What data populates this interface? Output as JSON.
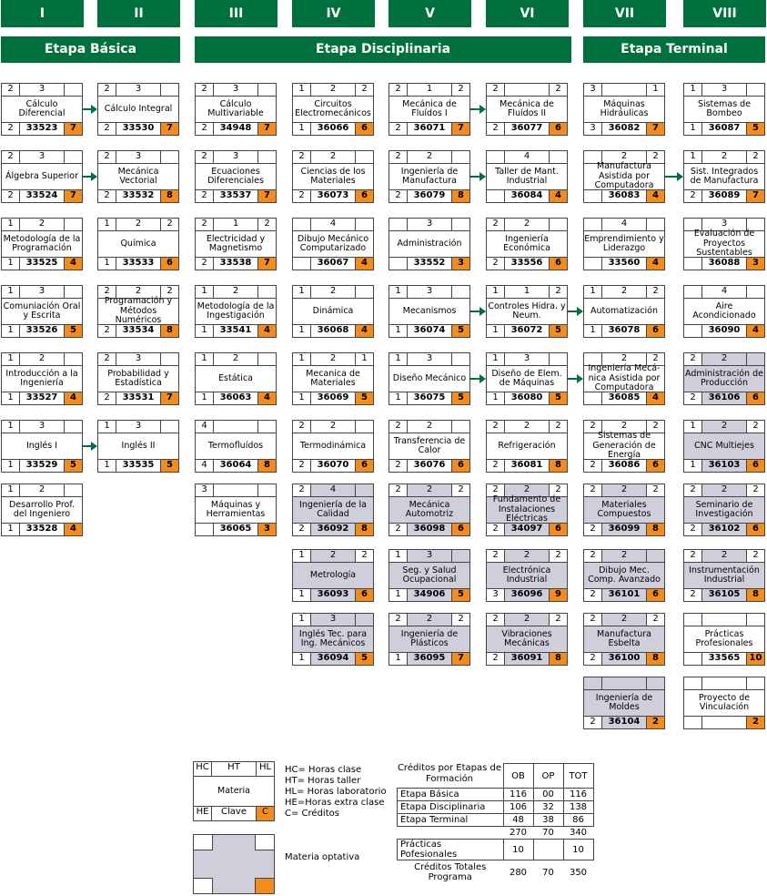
{
  "semesters": [
    "I",
    "II",
    "III",
    "IV",
    "V",
    "VI",
    "VII",
    "VIII"
  ],
  "stages": [
    "Etapa Básica",
    "Etapa Disciplinaria",
    "Etapa Terminal"
  ],
  "subjects": [
    {
      "hc": "2",
      "ht": "3",
      "hl": "",
      "name": "Cálculo Diferencial",
      "he": "2",
      "code": "33523",
      "cr": "7",
      "opt": false
    },
    {
      "hc": "2",
      "ht": "3",
      "hl": "",
      "name": "Álgebra Superior",
      "he": "2",
      "code": "33524",
      "cr": "7",
      "opt": false
    },
    {
      "hc": "1",
      "ht": "2",
      "hl": "",
      "name": "Metodología de la Programación",
      "he": "1",
      "code": "33525",
      "cr": "4",
      "opt": false
    },
    {
      "hc": "1",
      "ht": "3",
      "hl": "",
      "name": "Comuniación Oral y Escrita",
      "he": "1",
      "code": "33526",
      "cr": "5",
      "opt": false
    },
    {
      "hc": "1",
      "ht": "2",
      "hl": "",
      "name": "Introducción a la Ingeniería",
      "he": "1",
      "code": "33527",
      "cr": "4",
      "opt": false
    },
    {
      "hc": "1",
      "ht": "3",
      "hl": "",
      "name": "Inglés I",
      "he": "1",
      "code": "33529",
      "cr": "5",
      "opt": false
    },
    {
      "hc": "1",
      "ht": "2",
      "hl": "",
      "name": "Desarrollo Prof. del Ingeniero",
      "he": "1",
      "code": "33528",
      "cr": "4",
      "opt": false
    },
    {
      "hc": "2",
      "ht": "3",
      "hl": "",
      "name": "Cálculo Integral",
      "he": "2",
      "code": "33530",
      "cr": "7",
      "opt": false
    },
    {
      "hc": "2",
      "ht": "3",
      "hl": "",
      "name": "Mecánica Vectorial",
      "he": "2",
      "code": "33532",
      "cr": "8",
      "opt": false
    },
    {
      "hc": "1",
      "ht": "2",
      "hl": "2",
      "name": "Química",
      "he": "1",
      "code": "33533",
      "cr": "6",
      "opt": false
    },
    {
      "hc": "2",
      "ht": "2",
      "hl": "2",
      "name": "Programación y Métodos Numéricos",
      "he": "2",
      "code": "33534",
      "cr": "8",
      "opt": false
    },
    {
      "hc": "2",
      "ht": "3",
      "hl": "",
      "name": "Probabilidad y Estadística",
      "he": "2",
      "code": "33531",
      "cr": "7",
      "opt": false
    },
    {
      "hc": "1",
      "ht": "3",
      "hl": "",
      "name": "Inglés II",
      "he": "1",
      "code": "33535",
      "cr": "5",
      "opt": false
    },
    {
      "hc": "2",
      "ht": "3",
      "hl": "",
      "name": "Cálculo Multivariable",
      "he": "2",
      "code": "34948",
      "cr": "7",
      "opt": false
    },
    {
      "hc": "2",
      "ht": "3",
      "hl": "",
      "name": "Ecuaciones Diferenciales",
      "he": "2",
      "code": "33537",
      "cr": "7",
      "opt": false
    },
    {
      "hc": "2",
      "ht": "1",
      "hl": "2",
      "name": "Electricidad y Magnetismo",
      "he": "2",
      "code": "33538",
      "cr": "7",
      "opt": false
    },
    {
      "hc": "1",
      "ht": "2",
      "hl": "",
      "name": "Metodología de la Ingestigación",
      "he": "1",
      "code": "33541",
      "cr": "4",
      "opt": false
    },
    {
      "hc": "1",
      "ht": "2",
      "hl": "",
      "name": "Estática",
      "he": "1",
      "code": "36063",
      "cr": "4",
      "opt": false
    },
    {
      "hc": "4",
      "ht": "",
      "hl": "",
      "name": "Termofluídos",
      "he": "4",
      "code": "36064",
      "cr": "8",
      "opt": false
    },
    {
      "hc": "3",
      "ht": "",
      "hl": "",
      "name": "Máquinas y Herramientas",
      "he": "",
      "code": "36065",
      "cr": "3",
      "opt": false
    },
    {
      "hc": "1",
      "ht": "2",
      "hl": "2",
      "name": "Circuitos Electromecánicos",
      "he": "1",
      "code": "36066",
      "cr": "6",
      "opt": false
    },
    {
      "hc": "2",
      "ht": "2",
      "hl": "",
      "name": "Ciencias de los Materiales",
      "he": "2",
      "code": "36073",
      "cr": "6",
      "opt": false
    },
    {
      "hc": "",
      "ht": "4",
      "hl": "",
      "name": "Dibujo Mecánico Computarizado",
      "he": "",
      "code": "36067",
      "cr": "4",
      "opt": false
    },
    {
      "hc": "1",
      "ht": "2",
      "hl": "",
      "name": "Dinámica",
      "he": "1",
      "code": "36068",
      "cr": "4",
      "opt": false
    },
    {
      "hc": "1",
      "ht": "2",
      "hl": "1",
      "name": "Mecanica de Materiales",
      "he": "1",
      "code": "36069",
      "cr": "5",
      "opt": false
    },
    {
      "hc": "2",
      "ht": "2",
      "hl": "",
      "name": "Termodinámica",
      "he": "2",
      "code": "36070",
      "cr": "6",
      "opt": false
    },
    {
      "hc": "2",
      "ht": "4",
      "hl": "",
      "name": "Ingeniería de la Calidad",
      "he": "2",
      "code": "36092",
      "cr": "8",
      "opt": true
    },
    {
      "hc": "1",
      "ht": "2",
      "hl": "2",
      "name": "Metrología",
      "he": "1",
      "code": "36093",
      "cr": "6",
      "opt": true
    },
    {
      "hc": "1",
      "ht": "3",
      "hl": "",
      "name": "Inglés Tec. para Ing. Mecánicos",
      "he": "1",
      "code": "36094",
      "cr": "5",
      "opt": true
    },
    {
      "hc": "2",
      "ht": "1",
      "hl": "2",
      "name": "Mecánica de Fluídos I",
      "he": "2",
      "code": "36071",
      "cr": "7",
      "opt": false
    },
    {
      "hc": "2",
      "ht": "2",
      "hl": "",
      "name": "Ingeniería de Manufactura",
      "he": "2",
      "code": "36079",
      "cr": "8",
      "opt": false
    },
    {
      "hc": "",
      "ht": "3",
      "hl": "",
      "name": "Administración",
      "he": "",
      "code": "33552",
      "cr": "3",
      "opt": false
    },
    {
      "hc": "1",
      "ht": "3",
      "hl": "",
      "name": "Mecanismos",
      "he": "1",
      "code": "36074",
      "cr": "5",
      "opt": false
    },
    {
      "hc": "1",
      "ht": "3",
      "hl": "",
      "name": "Diseño Mecánico",
      "he": "1",
      "code": "36075",
      "cr": "5",
      "opt": false
    },
    {
      "hc": "2",
      "ht": "2",
      "hl": "",
      "name": "Transferencia de Calor",
      "he": "2",
      "code": "36076",
      "cr": "6",
      "opt": false
    },
    {
      "hc": "2",
      "ht": "2",
      "hl": "2",
      "name": "Mecánica Automotriz",
      "he": "2",
      "code": "36098",
      "cr": "6",
      "opt": true
    },
    {
      "hc": "1",
      "ht": "3",
      "hl": "",
      "name": "Seg. y Salud Ocupacional",
      "he": "1",
      "code": "34906",
      "cr": "5",
      "opt": true
    },
    {
      "hc": "2",
      "ht": "2",
      "hl": "2",
      "name": "Ingeniería de Plásticos",
      "he": "1",
      "code": "36095",
      "cr": "7",
      "opt": true
    },
    {
      "hc": "2",
      "ht": "",
      "hl": "2",
      "name": "Mecánica de Fluídos II",
      "he": "2",
      "code": "36077",
      "cr": "6",
      "opt": false
    },
    {
      "hc": "",
      "ht": "4",
      "hl": "",
      "name": "Taller de Mant. Industrial",
      "he": "",
      "code": "36084",
      "cr": "4",
      "opt": false
    },
    {
      "hc": "2",
      "ht": "2",
      "hl": "",
      "name": "Ingeniería Económica",
      "he": "2",
      "code": "33556",
      "cr": "6",
      "opt": false
    },
    {
      "hc": "1",
      "ht": "1",
      "hl": "2",
      "name": "Controles Hidra. y Neum.",
      "he": "1",
      "code": "36072",
      "cr": "5",
      "opt": false
    },
    {
      "hc": "1",
      "ht": "3",
      "hl": "",
      "name": "Diseño de Elem. de Máquinas",
      "he": "1",
      "code": "36080",
      "cr": "5",
      "opt": false
    },
    {
      "hc": "2",
      "ht": "2",
      "hl": "2",
      "name": "Refrigeración",
      "he": "2",
      "code": "36081",
      "cr": "8",
      "opt": false
    },
    {
      "hc": "2",
      "ht": "2",
      "hl": "2",
      "name": "Fundamento de Instalaciones Eléctricas",
      "he": "2",
      "code": "34097",
      "cr": "6",
      "opt": true
    },
    {
      "hc": "2",
      "ht": "2",
      "hl": "2",
      "name": "Electrónica Industrial",
      "he": "3",
      "code": "36096",
      "cr": "9",
      "opt": true
    },
    {
      "hc": "2",
      "ht": "2",
      "hl": "2",
      "name": "Vibraciones Mecánicas",
      "he": "2",
      "code": "36091",
      "cr": "8",
      "opt": true
    },
    {
      "hc": "3",
      "ht": "",
      "hl": "1",
      "name": "Máquinas Hidráulicas",
      "he": "3",
      "code": "36082",
      "cr": "7",
      "opt": false
    },
    {
      "hc": "",
      "ht": "2",
      "hl": "2",
      "name": "Manufactura Asistida por Computadora",
      "he": "",
      "code": "36083",
      "cr": "4",
      "opt": false
    },
    {
      "hc": "",
      "ht": "4",
      "hl": "",
      "name": "Emprendimiento y Liderazgo",
      "he": "",
      "code": "33560",
      "cr": "4",
      "opt": false
    },
    {
      "hc": "1",
      "ht": "2",
      "hl": "2",
      "name": "Automatización",
      "he": "1",
      "code": "36078",
      "cr": "6",
      "opt": false
    },
    {
      "hc": "",
      "ht": "2",
      "hl": "2",
      "name": "Ingeniería Mecá-nica Asistida por Computadora",
      "he": "",
      "code": "36085",
      "cr": "4",
      "opt": false
    },
    {
      "hc": "2",
      "ht": "2",
      "hl": "2",
      "name": "Sistemas de Generación de Energía",
      "he": "2",
      "code": "36086",
      "cr": "6",
      "opt": false
    },
    {
      "hc": "2",
      "ht": "2",
      "hl": "2",
      "name": "Materiales Compuestos",
      "he": "2",
      "code": "36099",
      "cr": "8",
      "opt": true
    },
    {
      "hc": "2",
      "ht": "2",
      "hl": "",
      "name": "Dibujo Mec. Comp. Avanzado",
      "he": "2",
      "code": "36101",
      "cr": "6",
      "opt": true
    },
    {
      "hc": "2",
      "ht": "2",
      "hl": "2",
      "name": "Manufactura Esbelta",
      "he": "2",
      "code": "36100",
      "cr": "8",
      "opt": true
    },
    {
      "hc": "",
      "ht": "",
      "hl": "",
      "name": "Ingeniería de Moldes",
      "he": "2",
      "code": "36104",
      "cr": "2",
      "opt": true
    },
    {
      "hc": "1",
      "ht": "3",
      "hl": "",
      "name": "Sistemas de Bombeo",
      "he": "1",
      "code": "36087",
      "cr": "5",
      "opt": false
    },
    {
      "hc": "1",
      "ht": "2",
      "hl": "2",
      "name": "Sist. Integrados de Manufactura",
      "he": "2",
      "code": "36089",
      "cr": "7",
      "opt": false
    },
    {
      "hc": "",
      "ht": "3",
      "hl": "",
      "name": "Evaluación de Proyectos Sustentables",
      "he": "",
      "code": "36088",
      "cr": "3",
      "opt": false
    },
    {
      "hc": "",
      "ht": "4",
      "hl": "",
      "name": "Aire Acondicionado",
      "he": "",
      "code": "36090",
      "cr": "4",
      "opt": false
    },
    {
      "hc": "2",
      "ht": "2",
      "hl": "",
      "name": "Administración de Producción",
      "he": "2",
      "code": "36106",
      "cr": "6",
      "opt": true
    },
    {
      "hc": "1",
      "ht": "2",
      "hl": "2",
      "name": "CNC Multiejes",
      "he": "1",
      "code": "36103",
      "cr": "6",
      "opt": true
    },
    {
      "hc": "2",
      "ht": "2",
      "hl": "2",
      "name": "Seminario de Investigación",
      "he": "2",
      "code": "36102",
      "cr": "6",
      "opt": true
    },
    {
      "hc": "2",
      "ht": "2",
      "hl": "2",
      "name": "Instrumentación Industrial",
      "he": "2",
      "code": "36105",
      "cr": "8",
      "opt": true
    },
    {
      "hc": "",
      "ht": "",
      "hl": "",
      "name": "Prácticas Profesionales",
      "he": "",
      "code": "33565",
      "cr": "10",
      "opt": false
    },
    {
      "hc": "",
      "ht": "",
      "hl": "",
      "name": "Proyecto de Vinculación",
      "he": "",
      "code": "",
      "cr": "2",
      "opt": false
    }
  ],
  "legend": {
    "hc": "HC",
    "ht": "HT",
    "hl": "HL",
    "materia": "Materia",
    "he": "HE",
    "clave": "Clave",
    "c": "C",
    "lines": [
      "HC= Horas clase",
      "HT= Horas taller",
      "HL= Horas laboratorio",
      "HE=Horas extra clase",
      "C= Créditos"
    ],
    "optional": "Materia optativa"
  },
  "credits": {
    "title": "Créditos por Etapas de Formación",
    "cols": [
      "OB",
      "OP",
      "TOT"
    ],
    "rows": [
      {
        "label": "Etapa Básica",
        "ob": "116",
        "op": "00",
        "tot": "116"
      },
      {
        "label": "Etapa Disciplinaria",
        "ob": "106",
        "op": "32",
        "tot": "138"
      },
      {
        "label": "Etapa Terminal",
        "ob": "48",
        "op": "38",
        "tot": "86"
      }
    ],
    "subtotal": {
      "ob": "270",
      "op": "70",
      "tot": "340"
    },
    "practicas": {
      "label": "Prácticas Pofesionales",
      "ob": "10",
      "op": "",
      "tot": "10"
    },
    "total": {
      "label": "Créditos Totales Programa",
      "ob": "280",
      "op": "70",
      "tot": "350"
    }
  },
  "colors": {
    "green": "#00703c",
    "orange": "#f28c1e",
    "optional": "#cfcfdc"
  }
}
